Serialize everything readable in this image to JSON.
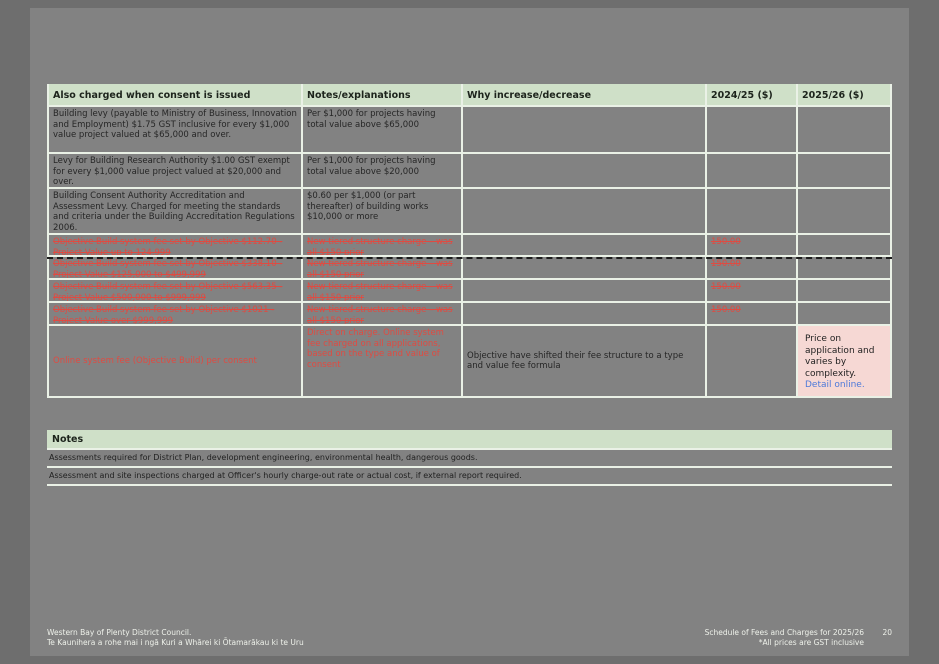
{
  "fees_table": {
    "headers": [
      "Also charged when consent is issued",
      "Notes/explanations",
      "Why increase/decrease",
      "2024/25 ($)",
      "2025/26 ($)"
    ],
    "rows": [
      {
        "item": "Building levy (payable to Ministry of Business, Innovation and Employment) $1.75 GST inclusive for every $1,000 value project valued at $65,000 and over.",
        "notes": "Per $1,000 for projects having total value above $65,000",
        "why": "",
        "fee_2024_25": "",
        "fee_2025_26": ""
      },
      {
        "item": "Levy for Building Research Authority $1.00 GST exempt for every $1,000 value project valued at $20,000 and over.",
        "notes": "Per $1,000 for projects having total value above $20,000",
        "why": "",
        "fee_2024_25": "",
        "fee_2025_26": ""
      },
      {
        "item": "Building Consent Authority Accreditation and Assessment Levy. Charged for meeting the standards and criteria under the Building Accreditation Regulations 2006.",
        "notes": "$0.60 per $1,000 (or part thereafter) of building works $10,000 or more",
        "why": "",
        "fee_2024_25": "",
        "fee_2025_26": ""
      },
      {
        "item": "Objective Build system fee set by Objective $112.70 - Project Value up to 124,999",
        "notes": "New tiered structure charge – was all $150 prior",
        "why": "",
        "fee_2024_25": "150.00",
        "fee_2025_26": ""
      },
      {
        "item": "Objective Build system fee set by Objective $338.10 - Project Value $125,000 to $499,999",
        "notes": "New tiered structure charge – was all $150 prior",
        "why": "",
        "fee_2024_25": "150.00",
        "fee_2025_26": ""
      },
      {
        "item": "Objective Build system fee set by Objective $563.35 - Project Value $500,000 to $999,999",
        "notes": "New tiered structure charge – was all $150 prior",
        "why": "",
        "fee_2024_25": "150.00",
        "fee_2025_26": ""
      },
      {
        "item": "Objective Build system fee set by Objective $1021 - Project Value over $999,999",
        "notes": "New tiered structure charge – was all $150 prior",
        "why": "",
        "fee_2024_25": "150.00",
        "fee_2025_26": ""
      },
      {
        "item": "Online system fee (Objective Build) per consent",
        "notes": "Direct on charge. Online system fee charged on all applications, based on the type and value of consent",
        "why": "Objective have shifted their fee structure to a type and value fee formula",
        "fee_2024_25": "",
        "fee_2025_26_text": "Price on application and varies by complexity.",
        "fee_2025_26_link": "Detail online."
      }
    ]
  },
  "notes_section": {
    "title": "Notes",
    "items": [
      "Assessments required for District Plan, development engineering, environmental health, dangerous goods.",
      "Assessment and site inspections charged at Officer's hourly charge-out rate or actual cost, if external report required."
    ]
  },
  "footer": {
    "org_line1": "Western Bay of Plenty District Council.",
    "org_line2": "Te Kaunihera a rohe mai i ngā Kuri a Whārei ki Ōtamarākau ki te Uru",
    "doc_line1": "Schedule of Fees and Charges for 2025/26",
    "doc_line2": "*All prices are GST inclusive",
    "page_number": "20"
  },
  "colors": {
    "header_green": "#cfe0c8",
    "strikethrough_red": "#df4b42",
    "highlight_pink": "#f6d8d4",
    "link_blue": "#4d79d9"
  }
}
